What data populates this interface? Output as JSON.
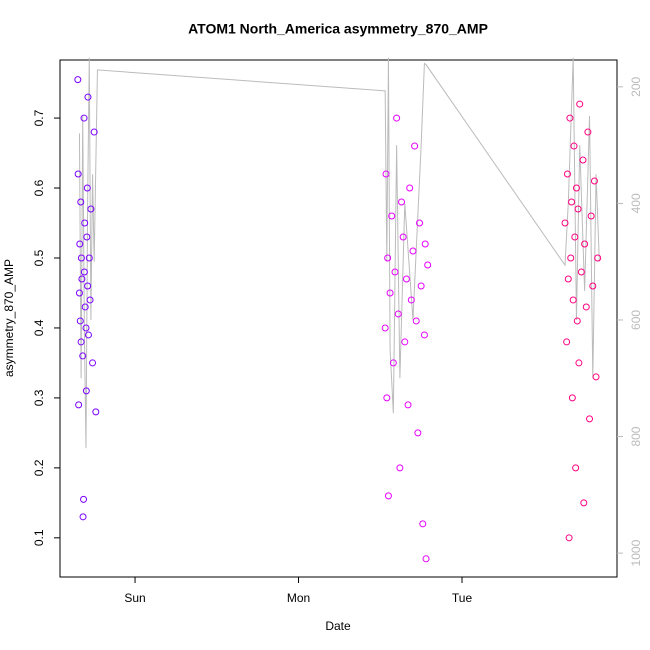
{
  "chart_data": {
    "type": "scatter",
    "title": "ATOM1 North_America asymmetry_870_AMP",
    "x_label": "Date",
    "y_label": "asymmetry_870_AMP",
    "xlim": [
      0.541,
      3.948
    ],
    "xticks": [
      {
        "value": 1,
        "label": "Sun"
      },
      {
        "value": 2,
        "label": "Mon"
      },
      {
        "value": 3,
        "label": "Tue"
      }
    ],
    "ylim": [
      0.044,
      0.783
    ],
    "yticks": [
      0.1,
      0.2,
      0.3,
      0.4,
      0.5,
      0.6,
      0.7
    ],
    "y2lim": [
      1041,
      154
    ],
    "y2ticks": [
      200,
      400,
      600,
      800,
      1000
    ],
    "series": [
      {
        "color": "#7a00ff",
        "x": [
          0.65,
          0.652,
          0.655,
          0.66,
          0.662,
          0.665,
          0.668,
          0.67,
          0.672,
          0.675,
          0.68,
          0.682,
          0.685,
          0.688,
          0.69,
          0.692,
          0.695,
          0.7,
          0.702,
          0.705,
          0.708,
          0.71,
          0.712,
          0.715,
          0.72,
          0.725,
          0.73,
          0.74,
          0.75,
          0.76
        ],
        "values": [
          0.755,
          0.62,
          0.29,
          0.45,
          0.52,
          0.41,
          0.58,
          0.38,
          0.5,
          0.47,
          0.36,
          0.13,
          0.155,
          0.7,
          0.48,
          0.55,
          0.43,
          0.4,
          0.31,
          0.53,
          0.6,
          0.46,
          0.73,
          0.39,
          0.5,
          0.44,
          0.57,
          0.35,
          0.68,
          0.28
        ]
      },
      {
        "color": "#e600ff",
        "x": [
          2.53,
          2.535,
          2.54,
          2.545,
          2.55,
          2.56,
          2.57,
          2.58,
          2.59,
          2.6,
          2.61,
          2.62,
          2.63,
          2.64,
          2.65,
          2.66,
          2.67,
          2.68,
          2.69,
          2.7,
          2.71,
          2.72,
          2.73,
          2.74,
          2.75,
          2.76,
          2.77,
          2.775,
          2.78,
          2.79
        ],
        "values": [
          0.4,
          0.62,
          0.3,
          0.5,
          0.16,
          0.45,
          0.56,
          0.35,
          0.48,
          0.7,
          0.42,
          0.2,
          0.58,
          0.53,
          0.38,
          0.47,
          0.29,
          0.6,
          0.44,
          0.51,
          0.66,
          0.41,
          0.25,
          0.55,
          0.46,
          0.12,
          0.39,
          0.52,
          0.07,
          0.49
        ]
      },
      {
        "color": "#ff0080",
        "x": [
          3.63,
          3.64,
          3.645,
          3.65,
          3.655,
          3.66,
          3.665,
          3.67,
          3.675,
          3.68,
          3.685,
          3.69,
          3.695,
          3.7,
          3.705,
          3.71,
          3.715,
          3.72,
          3.73,
          3.74,
          3.745,
          3.75,
          3.76,
          3.77,
          3.78,
          3.79,
          3.8,
          3.81,
          3.82,
          3.83
        ],
        "values": [
          0.55,
          0.38,
          0.62,
          0.47,
          0.1,
          0.7,
          0.5,
          0.58,
          0.3,
          0.44,
          0.66,
          0.53,
          0.2,
          0.6,
          0.41,
          0.57,
          0.35,
          0.72,
          0.48,
          0.64,
          0.15,
          0.52,
          0.43,
          0.68,
          0.27,
          0.56,
          0.46,
          0.61,
          0.33,
          0.5
        ]
      },
      {
        "color": "#bbbbbb",
        "axis": "y2",
        "type": "line",
        "x": [
          0.66,
          0.67,
          0.68,
          0.69,
          0.7,
          0.71,
          0.72,
          0.73,
          0.74,
          0.75,
          0.77,
          2.53,
          2.54,
          2.55,
          2.56,
          2.58,
          2.6,
          2.62,
          2.65,
          2.7,
          2.75,
          2.77,
          2.78,
          3.63,
          3.65,
          3.68,
          3.7,
          3.72,
          3.75,
          3.78,
          3.8,
          3.82,
          3.84
        ],
        "values": [
          280,
          700,
          250,
          620,
          820,
          400,
          150,
          600,
          350,
          500,
          171,
          207,
          500,
          150,
          650,
          760,
          300,
          700,
          400,
          600,
          300,
          160,
          162,
          506,
          400,
          150,
          600,
          300,
          550,
          250,
          700,
          350,
          500
        ]
      }
    ]
  }
}
